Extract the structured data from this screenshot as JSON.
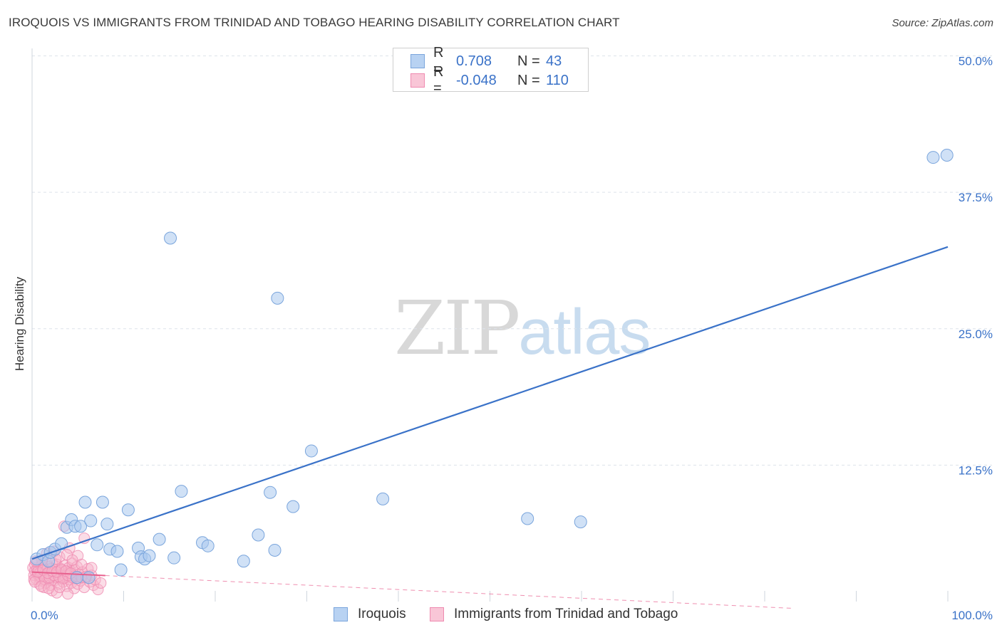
{
  "title": "IROQUOIS VS IMMIGRANTS FROM TRINIDAD AND TOBAGO HEARING DISABILITY CORRELATION CHART",
  "source": "Source: ZipAtlas.com",
  "watermark": {
    "part1": "ZIP",
    "part2": "atlas"
  },
  "legend": {
    "rows": [
      {
        "r_label": "R =",
        "r_value": "0.708",
        "n_label": "N =",
        "n_value": "43"
      },
      {
        "r_label": "R =",
        "r_value": "-0.048",
        "n_label": "N =",
        "n_value": "110"
      }
    ]
  },
  "colors": {
    "blue_fill": "#a9c8ef",
    "blue_stroke": "#7aa5dc",
    "blue_line": "#3a72c8",
    "pink_fill": "#f7b3c9",
    "pink_stroke": "#ef8ab0",
    "pink_line": "#e8608e",
    "grid": "#dde3ea",
    "tick_label": "#3a72c8"
  },
  "chart_data": {
    "type": "scatter",
    "title": "IROQUOIS VS IMMIGRANTS FROM TRINIDAD AND TOBAGO HEARING DISABILITY CORRELATION CHART",
    "xlabel": "",
    "ylabel": "Hearing Disability",
    "xlim": [
      0,
      100
    ],
    "ylim": [
      0,
      51
    ],
    "x_tick_labels": [
      "0.0%",
      "100.0%"
    ],
    "y_ticks": [
      12.5,
      25.0,
      37.5,
      50.0
    ],
    "y_tick_labels": [
      "12.5%",
      "25.0%",
      "37.5%",
      "50.0%"
    ],
    "grid": true,
    "series": [
      {
        "name": "Iroquois",
        "r": 0.708,
        "n": 43,
        "trend": {
          "x": [
            0,
            100
          ],
          "y": [
            3.9,
            32.5
          ],
          "style": "solid",
          "extends_to": 100
        },
        "points": [
          [
            0.5,
            3.9
          ],
          [
            1.2,
            4.3
          ],
          [
            1.8,
            3.7
          ],
          [
            2.0,
            4.5
          ],
          [
            2.5,
            4.8
          ],
          [
            3.2,
            5.3
          ],
          [
            3.8,
            6.8
          ],
          [
            4.3,
            7.5
          ],
          [
            4.7,
            6.9
          ],
          [
            5.3,
            6.9
          ],
          [
            5.8,
            9.1
          ],
          [
            6.4,
            7.4
          ],
          [
            7.1,
            5.2
          ],
          [
            7.7,
            9.1
          ],
          [
            8.2,
            7.1
          ],
          [
            8.5,
            4.8
          ],
          [
            9.3,
            4.6
          ],
          [
            9.7,
            2.9
          ],
          [
            10.5,
            8.4
          ],
          [
            11.6,
            4.9
          ],
          [
            11.9,
            4.1
          ],
          [
            12.3,
            3.9
          ],
          [
            12.8,
            4.2
          ],
          [
            13.9,
            5.7
          ],
          [
            15.1,
            33.3
          ],
          [
            15.5,
            4.0
          ],
          [
            16.3,
            10.1
          ],
          [
            18.6,
            5.4
          ],
          [
            19.2,
            5.1
          ],
          [
            23.1,
            3.7
          ],
          [
            24.7,
            6.1
          ],
          [
            26.0,
            10.0
          ],
          [
            26.5,
            4.7
          ],
          [
            26.8,
            27.8
          ],
          [
            28.5,
            8.7
          ],
          [
            30.5,
            13.8
          ],
          [
            38.3,
            9.4
          ],
          [
            54.1,
            7.6
          ],
          [
            59.9,
            7.3
          ],
          [
            98.4,
            40.7
          ],
          [
            99.9,
            40.9
          ],
          [
            4.9,
            2.2
          ],
          [
            6.2,
            2.2
          ]
        ]
      },
      {
        "name": "Immigrants from Trinidad and Tobago",
        "r": -0.048,
        "n": 110,
        "trend": {
          "x": [
            0,
            100
          ],
          "y": [
            2.7,
            -1.3
          ],
          "style": "solid_then_dashed",
          "solid_until": 8
        },
        "points": [
          [
            0.1,
            3.1
          ],
          [
            0.2,
            2.4
          ],
          [
            0.3,
            2.8
          ],
          [
            0.3,
            3.4
          ],
          [
            0.4,
            2.1
          ],
          [
            0.5,
            2.9
          ],
          [
            0.6,
            3.6
          ],
          [
            0.6,
            2.5
          ],
          [
            0.7,
            3.0
          ],
          [
            0.8,
            2.2
          ],
          [
            0.9,
            2.7
          ],
          [
            1.0,
            3.3
          ],
          [
            1.0,
            1.9
          ],
          [
            1.1,
            2.6
          ],
          [
            1.2,
            3.0
          ],
          [
            1.3,
            2.3
          ],
          [
            1.4,
            3.5
          ],
          [
            1.5,
            2.8
          ],
          [
            1.5,
            1.7
          ],
          [
            1.6,
            2.4
          ],
          [
            1.7,
            3.2
          ],
          [
            1.8,
            2.0
          ],
          [
            1.9,
            2.7
          ],
          [
            2.0,
            3.0
          ],
          [
            2.0,
            1.5
          ],
          [
            2.1,
            2.3
          ],
          [
            2.2,
            3.6
          ],
          [
            2.3,
            2.6
          ],
          [
            2.4,
            1.9
          ],
          [
            2.5,
            2.9
          ],
          [
            2.6,
            2.2
          ],
          [
            2.7,
            3.4
          ],
          [
            2.8,
            2.5
          ],
          [
            2.9,
            1.6
          ],
          [
            3.0,
            2.8
          ],
          [
            3.0,
            4.1
          ],
          [
            3.1,
            2.1
          ],
          [
            3.2,
            3.0
          ],
          [
            3.3,
            2.4
          ],
          [
            3.4,
            1.8
          ],
          [
            3.5,
            2.7
          ],
          [
            3.6,
            3.3
          ],
          [
            3.7,
            2.2
          ],
          [
            3.8,
            1.4
          ],
          [
            3.9,
            2.6
          ],
          [
            4.0,
            3.1
          ],
          [
            4.1,
            2.0
          ],
          [
            4.2,
            2.8
          ],
          [
            4.3,
            1.7
          ],
          [
            4.4,
            3.5
          ],
          [
            4.5,
            2.3
          ],
          [
            4.6,
            1.2
          ],
          [
            4.7,
            2.9
          ],
          [
            4.8,
            2.1
          ],
          [
            4.9,
            3.2
          ],
          [
            5.0,
            1.6
          ],
          [
            5.1,
            2.5
          ],
          [
            5.3,
            1.9
          ],
          [
            5.5,
            2.7
          ],
          [
            5.7,
            1.3
          ],
          [
            5.9,
            2.2
          ],
          [
            6.1,
            3.0
          ],
          [
            6.3,
            1.8
          ],
          [
            6.5,
            2.4
          ],
          [
            6.7,
            1.5
          ],
          [
            6.9,
            2.0
          ],
          [
            7.2,
            1.1
          ],
          [
            7.5,
            1.7
          ],
          [
            3.5,
            6.9
          ],
          [
            5.7,
            5.8
          ],
          [
            4.1,
            4.9
          ],
          [
            3.8,
            4.3
          ],
          [
            2.4,
            4.6
          ],
          [
            5.0,
            4.2
          ],
          [
            6.5,
            3.1
          ],
          [
            0.8,
            1.6
          ],
          [
            1.3,
            1.3
          ],
          [
            2.2,
            1.0
          ],
          [
            2.7,
            0.8
          ],
          [
            3.9,
            0.7
          ],
          [
            1.6,
            4.4
          ],
          [
            1.1,
            3.8
          ],
          [
            0.4,
            3.7
          ],
          [
            2.6,
            3.9
          ],
          [
            4.4,
            3.8
          ],
          [
            5.4,
            3.4
          ],
          [
            0.2,
            2.0
          ],
          [
            0.9,
            2.3
          ],
          [
            1.4,
            2.0
          ],
          [
            1.9,
            2.2
          ],
          [
            2.4,
            2.4
          ],
          [
            2.9,
            2.3
          ],
          [
            3.4,
            2.1
          ],
          [
            3.9,
            2.4
          ],
          [
            4.4,
            2.2
          ],
          [
            4.9,
            2.3
          ],
          [
            5.4,
            2.2
          ],
          [
            5.9,
            2.3
          ],
          [
            0.6,
            2.7
          ],
          [
            1.2,
            2.9
          ],
          [
            1.7,
            2.6
          ],
          [
            2.2,
            2.8
          ],
          [
            2.7,
            2.7
          ],
          [
            3.2,
            2.9
          ],
          [
            3.7,
            2.8
          ],
          [
            4.2,
            2.6
          ],
          [
            0.3,
            1.8
          ],
          [
            1.0,
            1.4
          ],
          [
            1.8,
            1.2
          ],
          [
            3.0,
            1.3
          ]
        ]
      }
    ]
  },
  "bottom_legend": [
    {
      "label": "Iroquois"
    },
    {
      "label": "Immigrants from Trinidad and Tobago"
    }
  ]
}
